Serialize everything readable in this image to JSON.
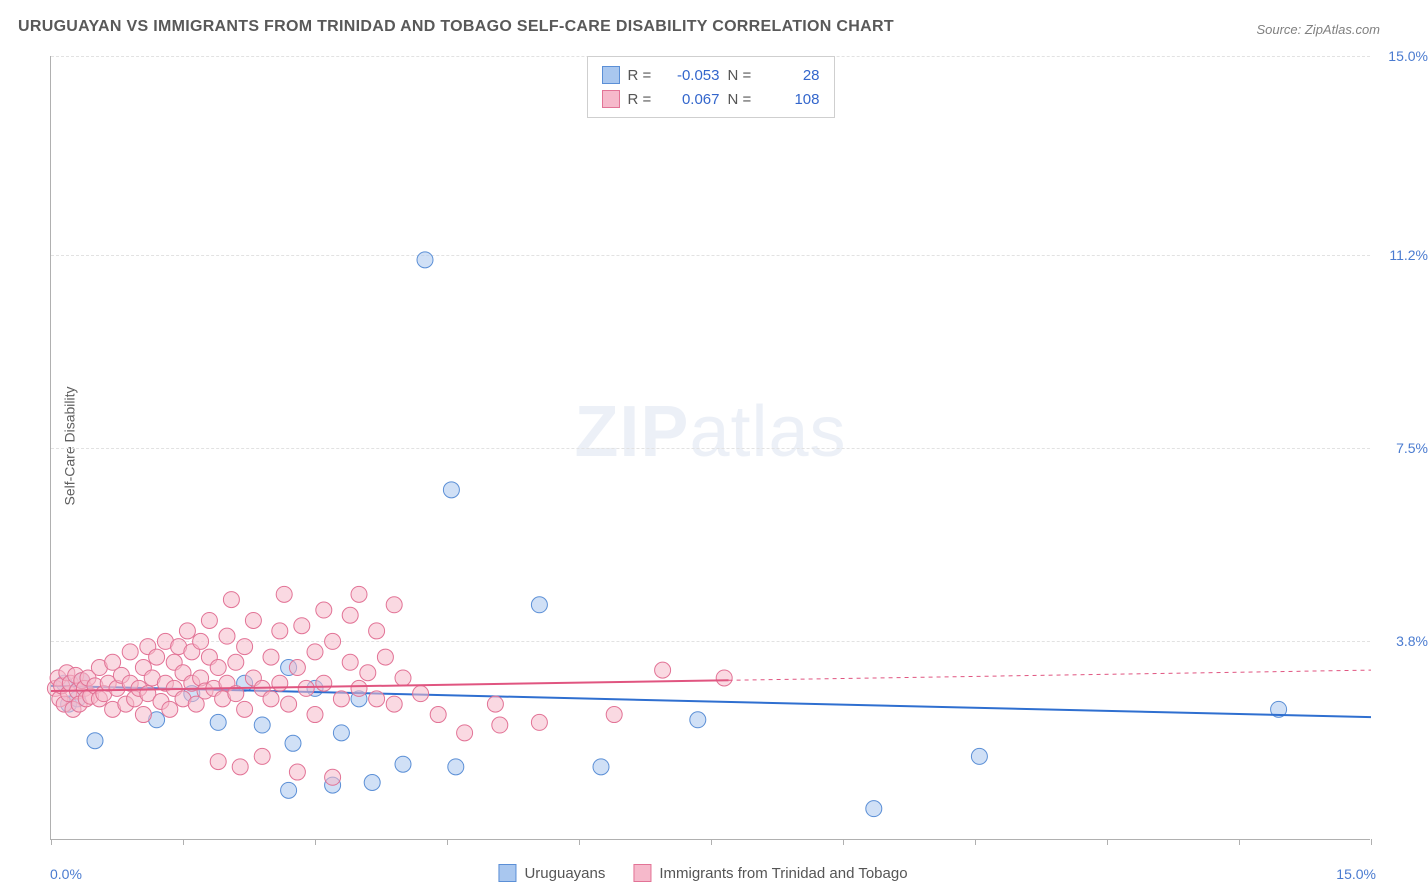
{
  "title": "URUGUAYAN VS IMMIGRANTS FROM TRINIDAD AND TOBAGO SELF-CARE DISABILITY CORRELATION CHART",
  "source": "Source: ZipAtlas.com",
  "ylabel": "Self-Care Disability",
  "watermark_zip": "ZIP",
  "watermark_atlas": "atlas",
  "chart": {
    "type": "scatter",
    "xlim": [
      0,
      15.0
    ],
    "ylim": [
      0,
      15.0
    ],
    "x_axis_labels": {
      "left": "0.0%",
      "right": "15.0%"
    },
    "y_ticks": [
      {
        "value": 3.8,
        "label": "3.8%"
      },
      {
        "value": 7.5,
        "label": "7.5%"
      },
      {
        "value": 11.2,
        "label": "11.2%"
      },
      {
        "value": 15.0,
        "label": "15.0%"
      }
    ],
    "x_tick_positions": [
      0,
      1.5,
      3.0,
      4.5,
      6.0,
      7.5,
      9.0,
      10.5,
      12.0,
      13.5,
      15.0
    ],
    "background_color": "#ffffff",
    "grid_color": "#e2e2e2",
    "marker_radius": 8,
    "marker_opacity": 0.55,
    "series": [
      {
        "name": "Uruguayans",
        "label": "Uruguayans",
        "color_fill": "#a9c7ef",
        "color_stroke": "#5b8fd6",
        "R": "-0.053",
        "N": "28",
        "trend": {
          "y_at_x0": 2.95,
          "y_at_xmax": 2.35,
          "solid_until_x": 15.0,
          "color": "#2f6fd0",
          "width": 2
        },
        "points": [
          [
            0.15,
            3.0
          ],
          [
            0.2,
            2.6
          ],
          [
            0.3,
            2.7
          ],
          [
            0.35,
            3.05
          ],
          [
            0.5,
            1.9
          ],
          [
            1.2,
            2.3
          ],
          [
            1.6,
            2.8
          ],
          [
            1.9,
            2.25
          ],
          [
            2.2,
            3.0
          ],
          [
            2.4,
            2.2
          ],
          [
            2.7,
            3.3
          ],
          [
            2.7,
            0.95
          ],
          [
            2.75,
            1.85
          ],
          [
            3.0,
            2.9
          ],
          [
            3.2,
            1.05
          ],
          [
            3.3,
            2.05
          ],
          [
            3.5,
            2.7
          ],
          [
            3.65,
            1.1
          ],
          [
            4.0,
            1.45
          ],
          [
            4.25,
            11.1
          ],
          [
            4.55,
            6.7
          ],
          [
            4.6,
            1.4
          ],
          [
            5.55,
            4.5
          ],
          [
            6.25,
            1.4
          ],
          [
            7.35,
            2.3
          ],
          [
            9.35,
            0.6
          ],
          [
            10.55,
            1.6
          ],
          [
            13.95,
            2.5
          ]
        ]
      },
      {
        "name": "Immigrants from Trinidad and Tobago",
        "label": "Immigrants from Trinidad and Tobago",
        "color_fill": "#f6b9cb",
        "color_stroke": "#e27396",
        "R": "0.067",
        "N": "108",
        "trend": {
          "y_at_x0": 2.85,
          "y_at_xmax": 3.25,
          "solid_until_x": 7.7,
          "color": "#e05580",
          "width": 2
        },
        "points": [
          [
            0.05,
            2.9
          ],
          [
            0.08,
            3.1
          ],
          [
            0.1,
            2.7
          ],
          [
            0.12,
            2.95
          ],
          [
            0.15,
            2.6
          ],
          [
            0.18,
            3.2
          ],
          [
            0.2,
            2.8
          ],
          [
            0.22,
            3.0
          ],
          [
            0.25,
            2.5
          ],
          [
            0.28,
            3.15
          ],
          [
            0.3,
            2.85
          ],
          [
            0.32,
            2.6
          ],
          [
            0.35,
            3.05
          ],
          [
            0.38,
            2.9
          ],
          [
            0.4,
            2.7
          ],
          [
            0.42,
            3.1
          ],
          [
            0.45,
            2.75
          ],
          [
            0.5,
            2.95
          ],
          [
            0.55,
            2.7
          ],
          [
            0.55,
            3.3
          ],
          [
            0.6,
            2.8
          ],
          [
            0.65,
            3.0
          ],
          [
            0.7,
            3.4
          ],
          [
            0.7,
            2.5
          ],
          [
            0.75,
            2.9
          ],
          [
            0.8,
            3.15
          ],
          [
            0.85,
            2.6
          ],
          [
            0.9,
            3.0
          ],
          [
            0.9,
            3.6
          ],
          [
            0.95,
            2.7
          ],
          [
            1.0,
            2.9
          ],
          [
            1.05,
            3.3
          ],
          [
            1.05,
            2.4
          ],
          [
            1.1,
            3.7
          ],
          [
            1.1,
            2.8
          ],
          [
            1.15,
            3.1
          ],
          [
            1.2,
            3.5
          ],
          [
            1.25,
            2.65
          ],
          [
            1.3,
            3.8
          ],
          [
            1.3,
            3.0
          ],
          [
            1.35,
            2.5
          ],
          [
            1.4,
            3.4
          ],
          [
            1.4,
            2.9
          ],
          [
            1.45,
            3.7
          ],
          [
            1.5,
            2.7
          ],
          [
            1.5,
            3.2
          ],
          [
            1.55,
            4.0
          ],
          [
            1.6,
            3.0
          ],
          [
            1.6,
            3.6
          ],
          [
            1.65,
            2.6
          ],
          [
            1.7,
            3.8
          ],
          [
            1.7,
            3.1
          ],
          [
            1.75,
            2.85
          ],
          [
            1.8,
            3.5
          ],
          [
            1.8,
            4.2
          ],
          [
            1.85,
            2.9
          ],
          [
            1.9,
            3.3
          ],
          [
            1.9,
            1.5
          ],
          [
            1.95,
            2.7
          ],
          [
            2.0,
            3.9
          ],
          [
            2.0,
            3.0
          ],
          [
            2.05,
            4.6
          ],
          [
            2.1,
            3.4
          ],
          [
            2.1,
            2.8
          ],
          [
            2.15,
            1.4
          ],
          [
            2.2,
            3.7
          ],
          [
            2.2,
            2.5
          ],
          [
            2.3,
            3.1
          ],
          [
            2.3,
            4.2
          ],
          [
            2.4,
            2.9
          ],
          [
            2.4,
            1.6
          ],
          [
            2.5,
            3.5
          ],
          [
            2.5,
            2.7
          ],
          [
            2.6,
            4.0
          ],
          [
            2.6,
            3.0
          ],
          [
            2.65,
            4.7
          ],
          [
            2.7,
            2.6
          ],
          [
            2.8,
            3.3
          ],
          [
            2.8,
            1.3
          ],
          [
            2.85,
            4.1
          ],
          [
            2.9,
            2.9
          ],
          [
            3.0,
            3.6
          ],
          [
            3.0,
            2.4
          ],
          [
            3.1,
            4.4
          ],
          [
            3.1,
            3.0
          ],
          [
            3.2,
            1.2
          ],
          [
            3.2,
            3.8
          ],
          [
            3.3,
            2.7
          ],
          [
            3.4,
            4.3
          ],
          [
            3.4,
            3.4
          ],
          [
            3.5,
            4.7
          ],
          [
            3.5,
            2.9
          ],
          [
            3.6,
            3.2
          ],
          [
            3.7,
            2.7
          ],
          [
            3.7,
            4.0
          ],
          [
            3.8,
            3.5
          ],
          [
            3.9,
            2.6
          ],
          [
            3.9,
            4.5
          ],
          [
            4.0,
            3.1
          ],
          [
            4.2,
            2.8
          ],
          [
            4.4,
            2.4
          ],
          [
            4.7,
            2.05
          ],
          [
            5.05,
            2.6
          ],
          [
            5.1,
            2.2
          ],
          [
            5.55,
            2.25
          ],
          [
            6.4,
            2.4
          ],
          [
            6.95,
            3.25
          ],
          [
            7.65,
            3.1
          ]
        ]
      }
    ]
  }
}
